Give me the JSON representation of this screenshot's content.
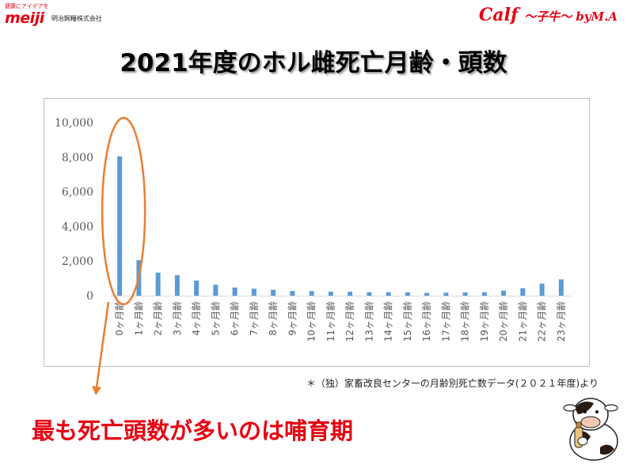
{
  "brand": {
    "tagline": "健康にアイデアを",
    "logo": "meiji",
    "company": "明治飼糧株式会社"
  },
  "calf_logo": {
    "main": "Calf",
    "sub": "～子牛～ byM.A"
  },
  "colors": {
    "bar": "#5b9bd5",
    "accent": "#e60012",
    "ellipse": "#ed7d31"
  },
  "chart_data": {
    "type": "bar",
    "title": "2021年度のホル雌死亡月齢・頭数",
    "categories": [
      "0ヶ月齢",
      "1ヶ月齢",
      "2ヶ月齢",
      "3ヶ月齢",
      "4ヶ月齢",
      "5ヶ月齢",
      "6ヶ月齢",
      "7ヶ月齢",
      "8ヶ月齢",
      "9ヶ月齢",
      "10ヶ月齢",
      "11ヶ月齢",
      "12ヶ月齢",
      "13ヶ月齢",
      "14ヶ月齢",
      "15ヶ月齢",
      "16ヶ月齢",
      "17ヶ月齢",
      "18ヶ月齢",
      "19ヶ月齢",
      "20ヶ月齢",
      "21ヶ月齢",
      "22ヶ月齢",
      "23ヶ月齢"
    ],
    "values": [
      8050,
      2050,
      1330,
      1180,
      870,
      630,
      470,
      400,
      340,
      270,
      260,
      230,
      230,
      200,
      200,
      190,
      160,
      170,
      190,
      200,
      290,
      430,
      700,
      940
    ],
    "ylim": [
      0,
      10000
    ],
    "yticks": [
      "0",
      "2,000",
      "4,000",
      "6,000",
      "8,000",
      "10,000"
    ],
    "ytick_values": [
      0,
      2000,
      4000,
      6000,
      8000,
      10000
    ],
    "grid": false,
    "highlight_category_index": 0
  },
  "source_note": "＊（独）家畜改良センターの月齢別死亡数データ(２０２１年度)より",
  "conclusion": "最も死亡頭数が多いのは哺育期"
}
